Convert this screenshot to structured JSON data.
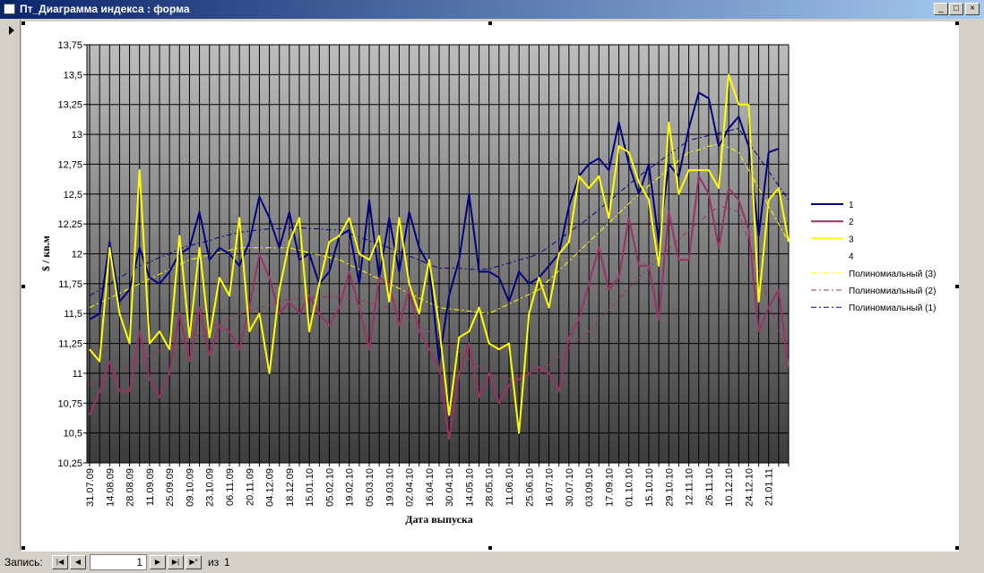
{
  "window": {
    "title": "Пт_Диаграмма индекса : форма"
  },
  "navigation": {
    "label": "Запись:",
    "current": "1",
    "of": "из",
    "total": "1"
  },
  "chart_data": {
    "type": "line",
    "y_label": "$ / кв.м",
    "x_label": "Дата выпуска",
    "ylim": [
      10.25,
      13.75
    ],
    "yticks": [
      {
        "value": 10.25,
        "label": "10,25"
      },
      {
        "value": 10.5,
        "label": "10,5"
      },
      {
        "value": 10.75,
        "label": "10,75"
      },
      11,
      {
        "value": 11.25,
        "label": "11,25"
      },
      {
        "value": 11.5,
        "label": "11,5"
      },
      {
        "value": 11.75,
        "label": "11,75"
      },
      12,
      {
        "value": 12.25,
        "label": "12,25"
      },
      {
        "value": 12.5,
        "label": "12,5"
      },
      {
        "value": 12.75,
        "label": "12,75"
      },
      13,
      {
        "value": 13.25,
        "label": "13,25"
      },
      {
        "value": 13.5,
        "label": "13,5"
      },
      {
        "value": 13.75,
        "label": "13,75"
      }
    ],
    "grid": true,
    "legend": "right",
    "categories": [
      "31.07.09",
      null,
      "14.08.09",
      null,
      "28.08.09",
      null,
      "11.09.09",
      null,
      "25.09.09",
      null,
      "09.10.09",
      null,
      "23.10.09",
      null,
      "06.11.09",
      null,
      "20.11.09",
      null,
      "04.12.09",
      null,
      "18.12.09",
      null,
      "15.01.10",
      null,
      "05.02.10",
      null,
      "19.02.10",
      null,
      "05.03.10",
      null,
      "19.03.10",
      null,
      "02.04.10",
      null,
      "16.04.10",
      null,
      "30.04.10",
      null,
      "14.05.10",
      null,
      "28.05.10",
      null,
      "11.06.10",
      null,
      "25.06.10",
      null,
      "16.07.10",
      null,
      "30.07.10",
      null,
      "03.09.10",
      null,
      "17.09.10",
      null,
      "01.10.10",
      null,
      "15.10.10",
      null,
      "29.10.10",
      null,
      "12.11.10",
      null,
      "26.11.10",
      null,
      "10.12.10",
      null,
      "24.12.10",
      null,
      "21.01.11",
      null,
      null
    ],
    "series": [
      {
        "name": "1",
        "color": "#000080",
        "values": [
          11.45,
          11.5,
          12.1,
          11.6,
          11.7,
          12.05,
          11.8,
          11.75,
          11.85,
          12.0,
          12.05,
          12.35,
          11.95,
          12.05,
          12.0,
          11.9,
          12.1,
          12.48,
          12.3,
          12.05,
          12.35,
          11.95,
          12.0,
          11.75,
          11.85,
          12.15,
          12.2,
          11.75,
          12.45,
          11.8,
          12.3,
          11.85,
          12.35,
          12.05,
          11.9,
          11.1,
          11.65,
          11.95,
          12.5,
          11.85,
          11.85,
          11.8,
          11.6,
          11.85,
          11.75,
          11.8,
          11.9,
          12.0,
          12.4,
          12.65,
          12.75,
          12.8,
          12.7,
          13.1,
          12.75,
          12.5,
          12.75,
          12.1,
          12.75,
          12.65,
          13.05,
          13.35,
          13.3,
          12.9,
          13.05,
          13.15,
          12.9,
          12.15,
          12.85,
          12.88,
          null
        ]
      },
      {
        "name": "2",
        "color": "#993366",
        "values": [
          10.65,
          10.85,
          11.1,
          10.85,
          10.85,
          11.35,
          10.95,
          10.8,
          11.0,
          11.5,
          11.1,
          11.55,
          11.15,
          11.4,
          11.35,
          11.2,
          11.55,
          12.0,
          11.8,
          11.5,
          11.6,
          11.5,
          11.65,
          11.5,
          11.4,
          11.55,
          11.85,
          11.55,
          11.2,
          11.8,
          11.75,
          11.4,
          11.7,
          11.35,
          11.2,
          11.05,
          10.45,
          11.0,
          11.25,
          10.8,
          11.0,
          10.75,
          10.9,
          10.95,
          11.0,
          11.05,
          11.0,
          10.85,
          11.3,
          11.45,
          11.75,
          12.05,
          11.7,
          11.8,
          12.3,
          11.9,
          11.9,
          11.45,
          12.35,
          11.95,
          11.95,
          12.65,
          12.5,
          12.05,
          12.55,
          12.45,
          12.2,
          11.35,
          11.55,
          11.7,
          11.05
        ]
      },
      {
        "name": "3",
        "color": "#ffff00",
        "values": [
          11.2,
          11.1,
          12.05,
          11.5,
          11.25,
          12.7,
          11.25,
          11.35,
          11.2,
          12.15,
          11.3,
          12.05,
          11.3,
          11.8,
          11.65,
          12.3,
          11.35,
          11.5,
          11.0,
          11.7,
          12.1,
          12.3,
          11.35,
          11.75,
          12.1,
          12.15,
          12.3,
          12.0,
          11.95,
          12.15,
          11.6,
          12.3,
          11.75,
          11.5,
          11.95,
          11.4,
          10.65,
          11.3,
          11.35,
          11.55,
          11.25,
          11.2,
          11.25,
          10.5,
          11.5,
          11.8,
          11.55,
          12.0,
          12.1,
          12.65,
          12.55,
          12.65,
          12.3,
          12.9,
          12.85,
          12.6,
          12.45,
          11.9,
          13.1,
          12.5,
          12.7,
          12.7,
          12.7,
          12.55,
          13.5,
          13.25,
          13.25,
          11.6,
          12.45,
          12.55,
          12.1
        ]
      },
      {
        "name": "4",
        "values": [
          null,
          null,
          null,
          null,
          null,
          null,
          null,
          null,
          null,
          null,
          null,
          null,
          null,
          null,
          null,
          null,
          null,
          null,
          null,
          null,
          null,
          null,
          null,
          null,
          null,
          null,
          null,
          null,
          null,
          null,
          null,
          null,
          null,
          null,
          null,
          null,
          null,
          null,
          null,
          null,
          null,
          null,
          null,
          null,
          null,
          null,
          null,
          null,
          null,
          null,
          null,
          null,
          null,
          null,
          null,
          null,
          null,
          null,
          null,
          null,
          null,
          null,
          null,
          null,
          null,
          null,
          null,
          null,
          null,
          null,
          null
        ]
      },
      {
        "name": "Полиномиальный (3)",
        "color": "#ffff00",
        "dash": true,
        "values": [
          11.55,
          11.59,
          11.63,
          11.67,
          11.71,
          11.75,
          11.79,
          11.83,
          11.87,
          11.91,
          11.95,
          11.97,
          11.99,
          12.01,
          12.03,
          12.05,
          12.05,
          12.05,
          12.05,
          12.05,
          12.05,
          12.03,
          12.01,
          11.99,
          11.97,
          11.95,
          11.91,
          11.87,
          11.83,
          11.79,
          11.75,
          11.71,
          11.67,
          11.63,
          11.59,
          11.55,
          11.54,
          11.53,
          11.52,
          11.51,
          11.5,
          11.54,
          11.58,
          11.62,
          11.66,
          11.7,
          11.78,
          11.86,
          11.94,
          12.02,
          12.1,
          12.18,
          12.26,
          12.34,
          12.42,
          12.5,
          12.57,
          12.64,
          12.71,
          12.78,
          12.85,
          12.87,
          12.9,
          12.92,
          12.89,
          12.85,
          12.7,
          12.55,
          12.4,
          12.25,
          12.1
        ]
      },
      {
        "name": "Полиномиальный (2)",
        "color": "#993366",
        "dash": true,
        "values": [
          10.9,
          10.94,
          10.98,
          11.02,
          11.06,
          11.1,
          11.14,
          11.18,
          11.22,
          11.26,
          11.3,
          11.34,
          11.38,
          11.42,
          11.46,
          11.5,
          11.52,
          11.55,
          11.57,
          11.6,
          11.62,
          11.63,
          11.63,
          11.64,
          11.64,
          11.65,
          11.63,
          11.61,
          11.59,
          11.57,
          11.55,
          11.5,
          11.45,
          11.4,
          11.35,
          11.3,
          11.24,
          11.18,
          11.12,
          11.06,
          11.0,
          10.97,
          10.95,
          10.97,
          10.98,
          11.0,
          11.07,
          11.14,
          11.21,
          11.28,
          11.35,
          11.44,
          11.53,
          11.62,
          11.71,
          11.8,
          11.88,
          11.96,
          12.04,
          12.12,
          12.2,
          12.27,
          12.33,
          12.4,
          12.38,
          12.35,
          12.1,
          11.85,
          11.6,
          11.35,
          11.1
        ]
      },
      {
        "name": "Полиномиальный (1)",
        "color": "#000080",
        "dash": true,
        "values": [
          11.65,
          11.7,
          11.75,
          11.8,
          11.85,
          11.9,
          11.93,
          11.97,
          12.0,
          12.04,
          12.07,
          12.09,
          12.11,
          12.14,
          12.16,
          12.18,
          12.19,
          12.2,
          12.21,
          12.21,
          12.22,
          12.22,
          12.21,
          12.21,
          12.2,
          12.2,
          12.17,
          12.14,
          12.11,
          12.08,
          12.05,
          12.02,
          11.98,
          11.95,
          11.91,
          11.88,
          11.88,
          11.88,
          11.87,
          11.87,
          11.87,
          11.9,
          11.92,
          11.95,
          11.97,
          12.0,
          12.06,
          12.12,
          12.18,
          12.24,
          12.3,
          12.37,
          12.44,
          12.51,
          12.58,
          12.65,
          12.71,
          12.77,
          12.83,
          12.89,
          12.95,
          12.97,
          12.99,
          13.01,
          13.03,
          13.05,
          12.93,
          12.81,
          12.69,
          12.57,
          12.45
        ]
      }
    ]
  }
}
